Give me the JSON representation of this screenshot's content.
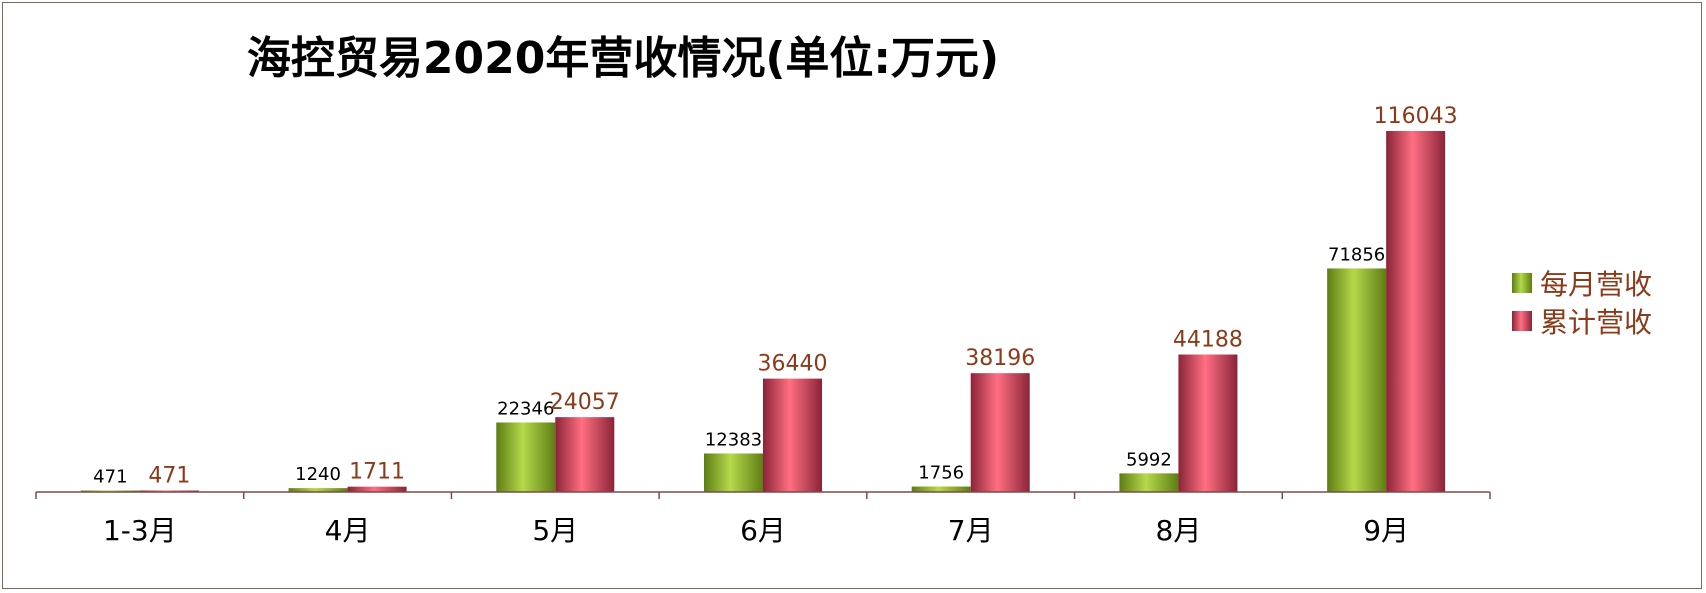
{
  "chart_data": {
    "type": "bar",
    "title": "海控贸易2020年营收情况(单位:万元)",
    "categories": [
      "1-3月",
      "4月",
      "5月",
      "6月",
      "7月",
      "8月",
      "9月"
    ],
    "series": [
      {
        "name": "每月营收",
        "values": [
          471,
          1240,
          22346,
          12383,
          1756,
          5992,
          71856
        ]
      },
      {
        "name": "累计营收",
        "values": [
          471,
          1711,
          24057,
          36440,
          38196,
          44188,
          116043
        ]
      }
    ],
    "xlabel": "",
    "ylabel": "",
    "ylim": [
      0,
      126000
    ],
    "grid": false,
    "legend_position": "right",
    "colors": {
      "monthly_light": "#b5d94a",
      "monthly_dark": "#5e7d14",
      "cumulative_light": "#ff6f82",
      "cumulative_dark": "#8a2438",
      "monthly_label": "#000000",
      "cumulative_label": "#8b3a1a",
      "axis": "#7f4a4a",
      "border": "#7f6a55"
    }
  }
}
